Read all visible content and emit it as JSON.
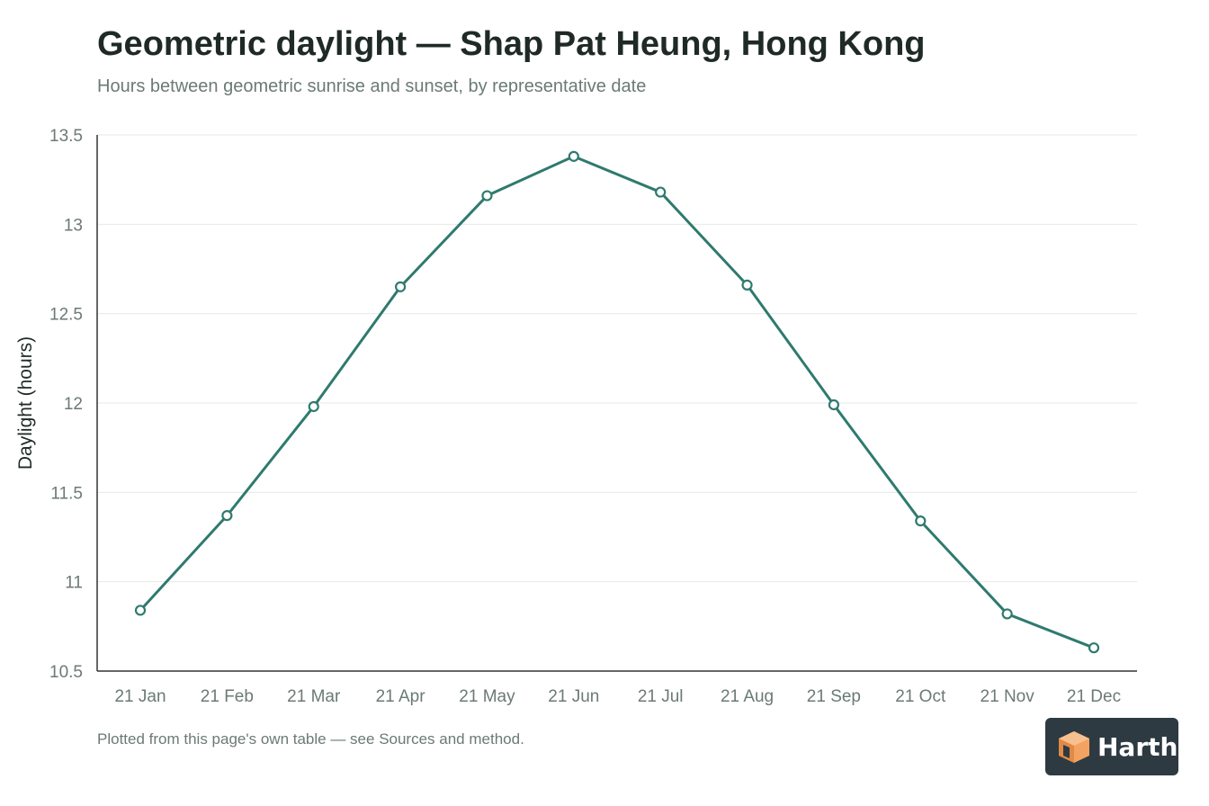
{
  "header": {
    "title": "Geometric daylight — Shap Pat Heung, Hong Kong",
    "subtitle": "Hours between geometric sunrise and sunset, by representative date"
  },
  "footnote": "Plotted from this page's own table — see Sources and method.",
  "logo": {
    "text": "Harth",
    "icon": "harth-cube-logo"
  },
  "colors": {
    "line": "#2f7a6e",
    "grid": "#e6e9e8",
    "axis": "#333333",
    "tick_text": "#6b7a75",
    "logo_bg": "#2e3a42",
    "logo_cube": "#f4a261"
  },
  "chart_data": {
    "type": "line",
    "title": "Geometric daylight — Shap Pat Heung, Hong Kong",
    "subtitle": "Hours between geometric sunrise and sunset, by representative date",
    "xlabel": "",
    "ylabel": "Daylight (hours)",
    "categories": [
      "21 Jan",
      "21 Feb",
      "21 Mar",
      "21 Apr",
      "21 May",
      "21 Jun",
      "21 Jul",
      "21 Aug",
      "21 Sep",
      "21 Oct",
      "21 Nov",
      "21 Dec"
    ],
    "values": [
      10.84,
      11.37,
      11.98,
      12.65,
      13.16,
      13.38,
      13.18,
      12.66,
      11.99,
      11.34,
      10.82,
      10.63
    ],
    "ylim": [
      10.5,
      13.5
    ],
    "yticks": [
      10.5,
      11,
      11.5,
      12,
      12.5,
      13,
      13.5
    ],
    "ytick_labels": [
      "10.5",
      "11",
      "11.5",
      "12",
      "12.5",
      "13",
      "13.5"
    ],
    "grid": true,
    "legend": "none"
  }
}
